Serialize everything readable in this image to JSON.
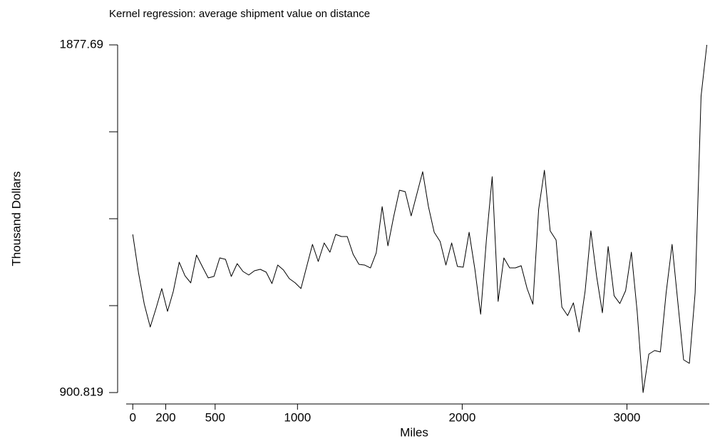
{
  "chart_data": {
    "type": "line",
    "title": "Kernel regression: average shipment value on distance",
    "x_label": "Miles",
    "y_label": "Thousand Dollars",
    "color": "#000000",
    "xlim": [
      -40,
      3500
    ],
    "xticks": [
      0,
      200,
      500,
      1000,
      2000,
      3000
    ],
    "ylim": [
      900.819,
      1877.69
    ],
    "yticks": [
      900.819,
      {
        "value": 1145.04,
        "label": null
      },
      {
        "value": 1389.25,
        "label": null
      },
      {
        "value": 1633.47,
        "label": null
      },
      1877.69
    ],
    "x": [
      0,
      35,
      70,
      106,
      141,
      176,
      211,
      246,
      282,
      317,
      352,
      387,
      422,
      458,
      493,
      528,
      563,
      598,
      634,
      669,
      704,
      739,
      774,
      810,
      845,
      880,
      915,
      950,
      986,
      1021,
      1056,
      1091,
      1126,
      1162,
      1197,
      1232,
      1267,
      1302,
      1338,
      1373,
      1408,
      1443,
      1478,
      1514,
      1549,
      1584,
      1619,
      1654,
      1690,
      1725,
      1760,
      1795,
      1830,
      1866,
      1901,
      1936,
      1971,
      2006,
      2042,
      2077,
      2112,
      2147,
      2182,
      2218,
      2253,
      2288,
      2323,
      2358,
      2394,
      2429,
      2464,
      2499,
      2534,
      2570,
      2605,
      2640,
      2675,
      2710,
      2746,
      2781,
      2816,
      2851,
      2886,
      2922,
      2957,
      2992,
      3027,
      3062,
      3098,
      3133,
      3168,
      3203,
      3238,
      3274,
      3309,
      3344,
      3379,
      3414,
      3450,
      3485
    ],
    "values": [
      1345.2,
      1237.1,
      1149.0,
      1085.0,
      1137.0,
      1193.1,
      1129.0,
      1185.1,
      1267.1,
      1229.1,
      1209.1,
      1287.1,
      1255.1,
      1223.1,
      1227.1,
      1279.1,
      1275.1,
      1227.1,
      1263.1,
      1241.1,
      1231.1,
      1243.1,
      1247.1,
      1239.1,
      1207.1,
      1259.1,
      1245.1,
      1221.1,
      1209.1,
      1193.1,
      1255.1,
      1317.2,
      1269.1,
      1321.2,
      1295.2,
      1345.2,
      1339.2,
      1339.2,
      1289.1,
      1261.1,
      1259.1,
      1251.1,
      1293.2,
      1423.3,
      1313.2,
      1395.2,
      1469.3,
      1465.3,
      1397.2,
      1459.3,
      1521.4,
      1423.3,
      1351.2,
      1325.2,
      1259.1,
      1321.2,
      1255.1,
      1253.1,
      1351.2,
      1247.1,
      1121.0,
      1331.2,
      1507.3,
      1157.0,
      1279.1,
      1251.1,
      1251.1,
      1257.1,
      1193.1,
      1149.0,
      1415.3,
      1525.4,
      1355.2,
      1329.2,
      1141.0,
      1117.0,
      1153.0,
      1071.0,
      1185.1,
      1355.2,
      1227.1,
      1125.0,
      1311.2,
      1173.0,
      1151.0,
      1187.1,
      1295.2,
      1129.0,
      900.819,
      1008.9,
      1018.9,
      1014.9,
      1181.1,
      1317.2,
      1155.0,
      992.9,
      982.9,
      1181.1,
      1733.5,
      1877.69
    ]
  }
}
